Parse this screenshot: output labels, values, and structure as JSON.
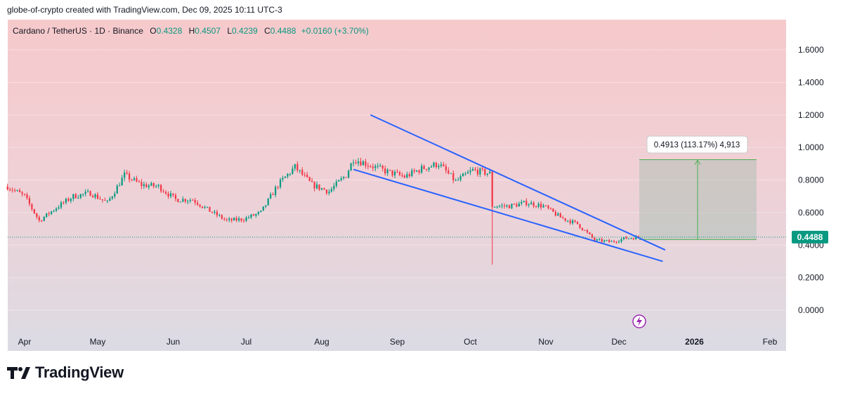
{
  "header": {
    "credit": "globe-of-crypto created with TradingView.com, Dec 09, 2025 10:11 UTC-3"
  },
  "legend": {
    "symbol": "Cardano / TetherUS · 1D · Binance",
    "open_label": "O",
    "open": "0.4328",
    "high_label": "H",
    "high": "0.4507",
    "low_label": "L",
    "low": "0.4239",
    "close_label": "C",
    "close": "0.4488",
    "change": "+0.0160 (+3.70%)"
  },
  "brand": {
    "name": "TradingView"
  },
  "colors": {
    "up": "#089981",
    "down": "#f23645",
    "trendline": "#2962ff",
    "last_price": "#089981"
  },
  "chart_data": {
    "type": "candlestick",
    "y_ticks": [
      "1.6000",
      "1.4000",
      "1.2000",
      "1.0000",
      "0.8000",
      "0.6000",
      "0.4000",
      "0.2000",
      "0.0000"
    ],
    "ylim": [
      -0.1,
      1.75
    ],
    "x_ticks": [
      "Apr",
      "May",
      "Jun",
      "Jul",
      "Aug",
      "Sep",
      "Oct",
      "Nov",
      "Dec",
      "2026",
      "Feb"
    ],
    "last_price": 0.4488,
    "last_price_label": "0.4488",
    "range_measure": {
      "label": "0.4913 (113.17%) 4,913",
      "from": 0.4339,
      "to": 0.925
    },
    "pattern": "falling wedge",
    "trendlines": [
      {
        "from": {
          "date": "2025-08-21",
          "price": 1.2
        },
        "to": {
          "date": "2025-12-20",
          "price": 0.37
        }
      },
      {
        "from": {
          "date": "2025-08-14",
          "price": 0.865
        },
        "to": {
          "date": "2025-12-19",
          "price": 0.3
        }
      }
    ],
    "price_path": [
      [
        "2025-03-25",
        0.76
      ],
      [
        "2025-04-01",
        0.7
      ],
      [
        "2025-04-07",
        0.55
      ],
      [
        "2025-04-14",
        0.63
      ],
      [
        "2025-04-21",
        0.7
      ],
      [
        "2025-04-28",
        0.72
      ],
      [
        "2025-05-05",
        0.66
      ],
      [
        "2025-05-12",
        0.83
      ],
      [
        "2025-05-19",
        0.77
      ],
      [
        "2025-05-26",
        0.76
      ],
      [
        "2025-06-02",
        0.68
      ],
      [
        "2025-06-09",
        0.68
      ],
      [
        "2025-06-16",
        0.61
      ],
      [
        "2025-06-23",
        0.55
      ],
      [
        "2025-06-30",
        0.56
      ],
      [
        "2025-07-07",
        0.6
      ],
      [
        "2025-07-14",
        0.77
      ],
      [
        "2025-07-21",
        0.88
      ],
      [
        "2025-07-28",
        0.77
      ],
      [
        "2025-08-04",
        0.73
      ],
      [
        "2025-08-11",
        0.83
      ],
      [
        "2025-08-14",
        0.93
      ],
      [
        "2025-08-21",
        0.89
      ],
      [
        "2025-08-28",
        0.85
      ],
      [
        "2025-09-04",
        0.82
      ],
      [
        "2025-09-11",
        0.87
      ],
      [
        "2025-09-18",
        0.9
      ],
      [
        "2025-09-25",
        0.79
      ],
      [
        "2025-10-02",
        0.86
      ],
      [
        "2025-10-09",
        0.84
      ],
      [
        "2025-10-10",
        0.64
      ],
      [
        "2025-10-17",
        0.64
      ],
      [
        "2025-10-24",
        0.66
      ],
      [
        "2025-10-31",
        0.64
      ],
      [
        "2025-11-07",
        0.57
      ],
      [
        "2025-11-14",
        0.53
      ],
      [
        "2025-11-21",
        0.43
      ],
      [
        "2025-11-28",
        0.42
      ],
      [
        "2025-12-03",
        0.44
      ],
      [
        "2025-12-09",
        0.4488
      ]
    ],
    "flash_crash": {
      "date": "2025-10-10",
      "low": 0.28
    }
  }
}
